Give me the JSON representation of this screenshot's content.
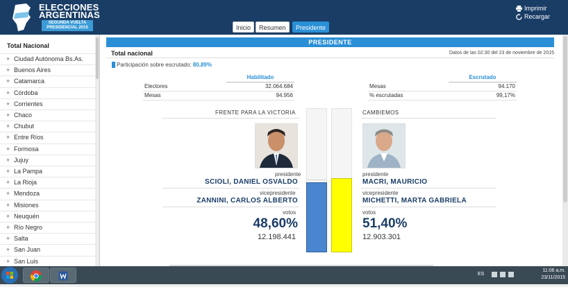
{
  "header": {
    "logo_line1": "ELECCIONES",
    "logo_line2": "ARGENTINAS",
    "logo_sub1": "SEGUNDA VUELTA",
    "logo_sub2": "PRESIDENCIAL 2015",
    "print_label": "Imprimir",
    "reload_label": "Recargar",
    "colors": {
      "background": "#1a3d66",
      "accent": "#2a8fd6"
    }
  },
  "nav": {
    "tabs": [
      {
        "label": "Inicio",
        "active": false
      },
      {
        "label": "Resumen",
        "active": false
      },
      {
        "label": "Presidente",
        "active": true
      }
    ]
  },
  "sidebar": {
    "title": "Total Nacional",
    "items": [
      "Ciudad Autónoma Bs.As.",
      "Buenos Aires",
      "Catamarca",
      "Córdoba",
      "Corrientes",
      "Chaco",
      "Chubut",
      "Entre Ríos",
      "Formosa",
      "Jujuy",
      "La Pampa",
      "La Rioja",
      "Mendoza",
      "Misiones",
      "Neuquén",
      "Río Negro",
      "Salta",
      "San Juan",
      "San Luis"
    ]
  },
  "main": {
    "banner": "PRESIDENTE",
    "subtitle": "Total nacional",
    "date_text": "Datos de las 02:30 del 23 de noviembre de 2015",
    "participation_label": "Participación sobre escrutado:",
    "participation_value": "80,89%",
    "habilitado": {
      "header": "Habilitado",
      "rows": [
        {
          "label": "Electores",
          "value": "32.064.684"
        },
        {
          "label": "Mesas",
          "value": "94.956"
        }
      ]
    },
    "escrutado": {
      "header": "Escrutado",
      "rows": [
        {
          "label": "Mesas",
          "value": "94.170"
        },
        {
          "label": "% escrutadas",
          "value": "99,17%"
        }
      ]
    },
    "left": {
      "party": "FRENTE PARA LA VICTORIA",
      "president_label": "presidente",
      "president": "SCIOLI, DANIEL OSVALDO",
      "vp_label": "vicepresidente",
      "vp": "ZANNINI, CARLOS ALBERTO",
      "votes_label": "votos",
      "percent": "48,60%",
      "votes": "12.198.441",
      "share": 48.6,
      "color": "#4a86d0"
    },
    "right": {
      "party": "CAMBIEMOS",
      "president_label": "presidente",
      "president": "MACRI, MAURICIO",
      "vp_label": "vicepresidente",
      "vp": "MICHETTI, MARTA GABRIELA",
      "votes_label": "votos",
      "percent": "51,40%",
      "votes": "12.903.301",
      "share": 51.4,
      "color": "#ffff00"
    }
  },
  "taskbar": {
    "lang": "ES",
    "time": "11:06 a.m.",
    "date": "23/11/2015"
  }
}
